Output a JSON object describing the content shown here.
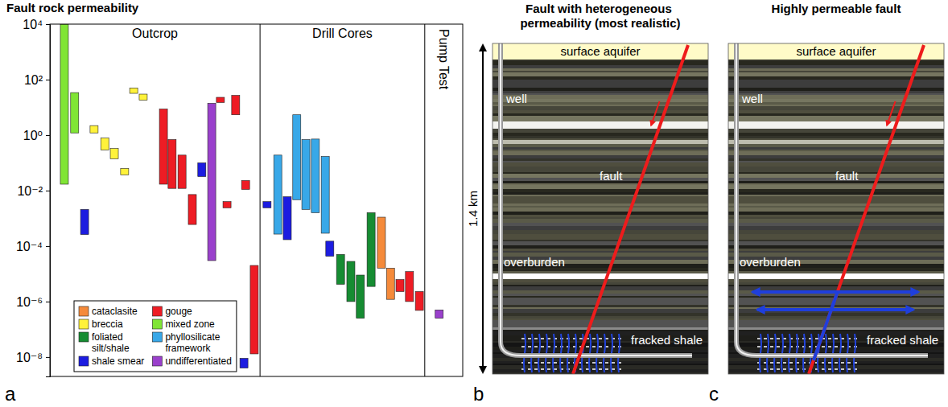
{
  "chart_data": {
    "type": "floating_bar",
    "title": "Fault rock permeability",
    "panel_label": "a",
    "log": "y",
    "xlim": [
      0,
      100
    ],
    "ylim": [
      2e-09,
      10000
    ],
    "yticks": [
      {
        "value": 1e-08,
        "label": "10⁻⁸"
      },
      {
        "value": 1e-06,
        "label": "10⁻⁶"
      },
      {
        "value": 0.0001,
        "label": "10⁻⁴"
      },
      {
        "value": 0.01,
        "label": "10⁻²"
      },
      {
        "value": 1,
        "label": "10⁰"
      },
      {
        "value": 100,
        "label": "10²"
      },
      {
        "value": 10000,
        "label": "10⁴"
      }
    ],
    "tick_labels": "y",
    "legend": "lower left",
    "sections": [
      {
        "label": "Outcrop",
        "from": 0,
        "to": 50.9
      },
      {
        "label": "Drill Cores",
        "from": 50.9,
        "to": 90.8
      },
      {
        "label": "Pump Test",
        "from": 90.8,
        "to": 100
      }
    ],
    "series": [
      {
        "name": "cataclasite",
        "color": "#f58a3a",
        "x": [
          80.3,
          82.5
        ],
        "low": [
          1.6e-05,
          1.2e-06
        ],
        "high": [
          0.0011,
          1.6e-05
        ]
      },
      {
        "name": "gouge",
        "color": "#ee1c24",
        "x": [
          27.5,
          29.6,
          32.0,
          34.5,
          41.3,
          42.9,
          45.0,
          47.4,
          49.5,
          84.8,
          87.1,
          89.5
        ],
        "low": [
          0.017,
          0.012,
          0.012,
          0.0006,
          15,
          0.0024,
          5.4,
          0.011,
          1.3e-08,
          2.3e-06,
          1e-06,
          4.8e-07
        ],
        "high": [
          8.7,
          0.69,
          0.19,
          0.0072,
          23,
          0.004,
          27,
          0.023,
          2e-05,
          6.2e-06,
          1.2e-05,
          2.3e-06
        ]
      },
      {
        "name": "breccia",
        "color": "#fff23a",
        "x": [
          10.7,
          13.3,
          15.6,
          18.1,
          20.3,
          22.6
        ],
        "low": [
          1.2,
          0.29,
          0.14,
          0.037,
          32,
          18
        ],
        "high": [
          2.2,
          0.78,
          0.33,
          0.063,
          50,
          30
        ]
      },
      {
        "name": "mixed zone",
        "color": "#80e535",
        "x": [
          3.5,
          6.0
        ],
        "low": [
          0.017,
          1.2
        ],
        "high": [
          10000,
          34
        ]
      },
      {
        "name": "foliated silt/shale",
        "color": "#168c32",
        "x": [
          70.4,
          72.9,
          75.2,
          77.8
        ],
        "low": [
          4.2e-06,
          1e-06,
          2.5e-07,
          3.5e-06
        ],
        "high": [
          5e-05,
          2.8e-05,
          9e-06,
          0.0016
        ]
      },
      {
        "name": "phyllosilicate framework",
        "color": "#38a8e8",
        "x": [
          55.2,
          59.8,
          62.0,
          64.3,
          66.7
        ],
        "low": [
          0.00027,
          0.0047,
          0.0021,
          0.0016,
          0.00029
        ],
        "high": [
          0.19,
          5.4,
          0.69,
          0.72,
          0.17
        ]
      },
      {
        "name": "shale smear",
        "color": "#1c1ce0",
        "x": [
          8.4,
          36.8,
          47.0,
          52.6,
          57.5,
          67.8
        ],
        "low": [
          0.00026,
          0.032,
          4e-09,
          0.0024,
          0.00017,
          4.3e-05
        ],
        "high": [
          0.0021,
          0.1,
          9e-09,
          0.004,
          0.006,
          0.00015
        ]
      },
      {
        "name": "undifferentiated",
        "color": "#9a40cc",
        "x": [
          39.2,
          94.3
        ],
        "low": [
          3e-05,
          2.5e-07
        ],
        "high": [
          14,
          5e-07
        ]
      }
    ]
  },
  "diagrams": {
    "scale_label": "1.4 km",
    "panels": [
      {
        "letter": "b",
        "title": "Fault with heterogeneous permeability (most realistic)",
        "aquifer": "surface aquifer",
        "well": "well",
        "fault": "fault",
        "overburden": "overburden",
        "shale": "fracked shale",
        "flow": false
      },
      {
        "letter": "c",
        "title": "Highly permeable fault",
        "aquifer": "surface aquifer",
        "well": "well",
        "fault": "fault",
        "overburden": "overburden",
        "shale": "fracked shale",
        "flow": true
      }
    ]
  }
}
